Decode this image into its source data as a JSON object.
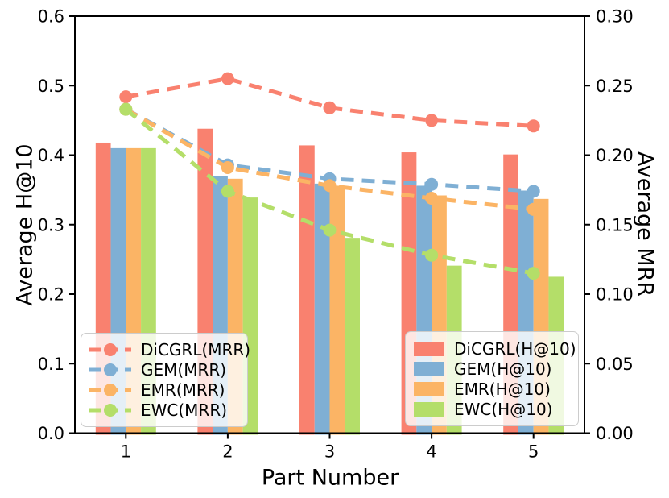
{
  "chart_data": {
    "type": "bar+line (dual axis)",
    "xlabel": "Part Number",
    "categories": [
      1,
      2,
      3,
      4,
      5
    ],
    "x_tick_labels": [
      "1",
      "2",
      "3",
      "4",
      "5"
    ],
    "grid": false,
    "left_axis": {
      "label": "Average H@10",
      "range": [
        0.0,
        0.6
      ],
      "ticks": [
        "0.0",
        "0.1",
        "0.2",
        "0.3",
        "0.4",
        "0.5",
        "0.6"
      ],
      "tick_step": 0.1
    },
    "right_axis": {
      "label": "Average MRR",
      "range": [
        0.0,
        0.3
      ],
      "ticks": [
        "0.00",
        "0.05",
        "0.10",
        "0.15",
        "0.20",
        "0.25",
        "0.30"
      ],
      "tick_step": 0.05
    },
    "bar_series": [
      {
        "name": "DiCGRL(H@10)",
        "axis": "left",
        "color": "#F9816F",
        "values": [
          0.418,
          0.438,
          0.414,
          0.404,
          0.401
        ]
      },
      {
        "name": "GEM(H@10)",
        "axis": "left",
        "color": "#7FAFD4",
        "values": [
          0.41,
          0.37,
          0.359,
          0.356,
          0.349
        ]
      },
      {
        "name": "EMR(H@10)",
        "axis": "left",
        "color": "#FBB465",
        "values": [
          0.41,
          0.366,
          0.356,
          0.342,
          0.337
        ]
      },
      {
        "name": "EWC(H@10)",
        "axis": "left",
        "color": "#B4DE69",
        "values": [
          0.41,
          0.339,
          0.281,
          0.241,
          0.225
        ]
      }
    ],
    "line_series": [
      {
        "name": "DiCGRL(MRR)",
        "axis": "right",
        "color": "#F9816F",
        "values": [
          0.242,
          0.255,
          0.234,
          0.225,
          0.221
        ]
      },
      {
        "name": "GEM(MRR)",
        "axis": "right",
        "color": "#7FAFD4",
        "values": [
          0.233,
          0.193,
          0.183,
          0.179,
          0.174
        ]
      },
      {
        "name": "EMR(MRR)",
        "axis": "right",
        "color": "#FBB465",
        "values": [
          0.233,
          0.191,
          0.178,
          0.169,
          0.161
        ]
      },
      {
        "name": "EWC(MRR)",
        "axis": "right",
        "color": "#B4DE69",
        "values": [
          0.233,
          0.174,
          0.146,
          0.128,
          0.115
        ]
      }
    ],
    "legend_mrr_position": "lower left",
    "legend_h10_position": "lower right",
    "axis_color": "#000000"
  }
}
